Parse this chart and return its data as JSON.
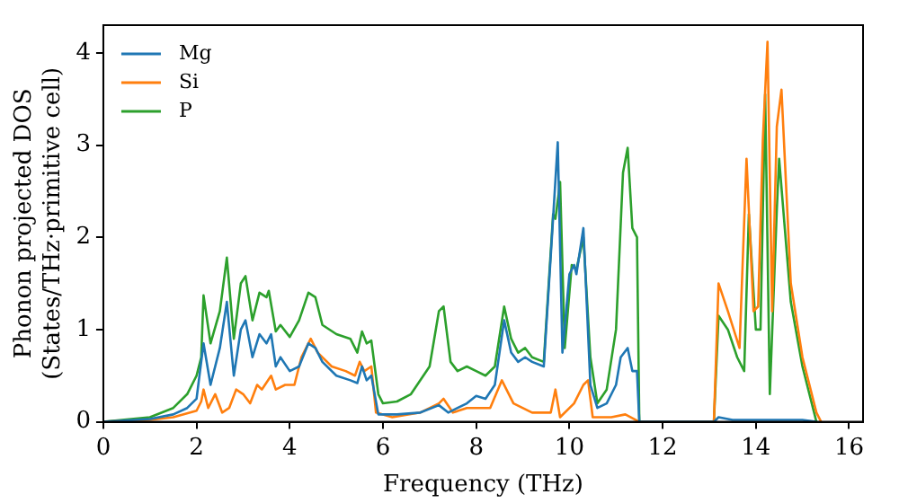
{
  "chart_data": {
    "type": "line",
    "xlabel": "Frequency (THz)",
    "ylabel": "Phonon projected DOS\n(States/THz·primitive cell)",
    "xlim": [
      0,
      16.3
    ],
    "xticks": [
      0,
      2,
      4,
      6,
      8,
      10,
      12,
      14,
      16
    ],
    "ylim": [
      0,
      4.3
    ],
    "yticks": [
      0,
      1,
      2,
      3,
      4
    ],
    "grid": false,
    "legend": "top left",
    "marker": "none",
    "line_style": "solid",
    "series": [
      {
        "name": "Mg",
        "color": "#1f77b4",
        "x": [
          0,
          1,
          1.5,
          1.8,
          2,
          2.15,
          2.3,
          2.5,
          2.65,
          2.8,
          2.95,
          3.05,
          3.2,
          3.35,
          3.5,
          3.6,
          3.7,
          3.8,
          4,
          4.2,
          4.4,
          4.55,
          4.7,
          5,
          5.3,
          5.45,
          5.55,
          5.65,
          5.75,
          5.9,
          6.3,
          6.8,
          7.2,
          7.4,
          7.6,
          7.8,
          8,
          8.2,
          8.4,
          8.6,
          8.75,
          8.9,
          9.05,
          9.2,
          9.45,
          9.6,
          9.75,
          9.85,
          10,
          10.1,
          10.15,
          10.3,
          10.45,
          10.6,
          10.8,
          11,
          11.1,
          11.25,
          11.35,
          11.45,
          11.5,
          13.1,
          13.2,
          13.5,
          14,
          15,
          15.3
        ],
        "values": [
          0,
          0.03,
          0.08,
          0.15,
          0.25,
          0.85,
          0.4,
          0.8,
          1.3,
          0.5,
          1,
          1.1,
          0.7,
          0.95,
          0.85,
          0.95,
          0.6,
          0.7,
          0.55,
          0.6,
          0.85,
          0.8,
          0.65,
          0.5,
          0.45,
          0.42,
          0.6,
          0.45,
          0.5,
          0.08,
          0.08,
          0.1,
          0.18,
          0.1,
          0.15,
          0.2,
          0.28,
          0.25,
          0.4,
          1.1,
          0.75,
          0.65,
          0.7,
          0.65,
          0.6,
          1.8,
          3.03,
          0.75,
          1.6,
          1.7,
          1.6,
          2.1,
          0.4,
          0.15,
          0.2,
          0.4,
          0.7,
          0.8,
          0.55,
          0.55,
          0,
          0,
          0.05,
          0.02,
          0.02,
          0.02,
          0
        ]
      },
      {
        "name": "Si",
        "color": "#ff7f0e",
        "x": [
          0,
          1,
          1.5,
          2,
          2.1,
          2.15,
          2.25,
          2.4,
          2.55,
          2.7,
          2.85,
          3,
          3.15,
          3.3,
          3.4,
          3.6,
          3.7,
          3.9,
          4.1,
          4.25,
          4.45,
          4.6,
          4.9,
          5.2,
          5.4,
          5.5,
          5.6,
          5.75,
          5.85,
          6.2,
          6.8,
          7.2,
          7.3,
          7.5,
          7.8,
          8,
          8.3,
          8.55,
          8.8,
          9.2,
          9.6,
          9.7,
          9.8,
          10.1,
          10.3,
          10.4,
          10.5,
          10.9,
          11.2,
          11.5,
          13.1,
          13.2,
          13.4,
          13.65,
          13.8,
          13.95,
          14.05,
          14.15,
          14.25,
          14.35,
          14.45,
          14.55,
          14.75,
          15,
          15.3,
          15.4
        ],
        "values": [
          0,
          0.02,
          0.05,
          0.12,
          0.22,
          0.35,
          0.15,
          0.3,
          0.1,
          0.15,
          0.35,
          0.3,
          0.2,
          0.4,
          0.35,
          0.5,
          0.35,
          0.4,
          0.4,
          0.7,
          0.9,
          0.75,
          0.6,
          0.55,
          0.5,
          0.65,
          0.55,
          0.6,
          0.1,
          0.05,
          0.1,
          0.2,
          0.25,
          0.1,
          0.15,
          0.15,
          0.15,
          0.45,
          0.2,
          0.1,
          0.1,
          0.35,
          0.05,
          0.2,
          0.4,
          0.45,
          0.05,
          0.05,
          0.08,
          0,
          0,
          1.5,
          1.2,
          0.8,
          2.85,
          1.2,
          1.25,
          3.05,
          4.12,
          1.2,
          3.2,
          3.6,
          1.5,
          0.7,
          0.1,
          0
        ]
      },
      {
        "name": "P",
        "color": "#2ca02c",
        "x": [
          0,
          1,
          1.5,
          1.8,
          2,
          2.1,
          2.15,
          2.3,
          2.5,
          2.65,
          2.8,
          2.95,
          3.05,
          3.2,
          3.35,
          3.5,
          3.55,
          3.7,
          3.8,
          4,
          4.2,
          4.4,
          4.55,
          4.7,
          5,
          5.3,
          5.45,
          5.55,
          5.65,
          5.75,
          5.9,
          6,
          6.3,
          6.6,
          7,
          7.1,
          7.2,
          7.3,
          7.45,
          7.6,
          7.8,
          8,
          8.2,
          8.4,
          8.6,
          8.75,
          8.9,
          9.05,
          9.2,
          9.45,
          9.65,
          9.7,
          9.8,
          9.9,
          10.05,
          10.15,
          10.3,
          10.45,
          10.6,
          10.8,
          11,
          11.15,
          11.25,
          11.35,
          11.45,
          11.5,
          13.1,
          13.2,
          13.4,
          13.6,
          13.75,
          13.85,
          14,
          14.1,
          14.2,
          14.3,
          14.45,
          14.5,
          14.75,
          15,
          15.3
        ],
        "values": [
          0,
          0.05,
          0.15,
          0.3,
          0.5,
          0.7,
          1.37,
          0.85,
          1.2,
          1.78,
          0.9,
          1.5,
          1.58,
          1.1,
          1.4,
          1.35,
          1.42,
          0.98,
          1.05,
          0.92,
          1.1,
          1.4,
          1.35,
          1.05,
          0.95,
          0.9,
          0.75,
          0.98,
          0.85,
          0.88,
          0.3,
          0.2,
          0.22,
          0.3,
          0.6,
          0.9,
          1.2,
          1.25,
          0.65,
          0.55,
          0.6,
          0.55,
          0.5,
          0.6,
          1.25,
          0.9,
          0.75,
          0.8,
          0.7,
          0.65,
          2.25,
          2.2,
          2.6,
          0.8,
          1.7,
          1.65,
          2,
          0.7,
          0.2,
          0.35,
          1,
          2.7,
          2.97,
          2.1,
          2,
          0,
          0,
          1.15,
          1,
          0.7,
          0.55,
          2.25,
          1,
          1,
          3.55,
          0.3,
          2.3,
          2.85,
          1.3,
          0.6,
          0
        ]
      }
    ]
  }
}
